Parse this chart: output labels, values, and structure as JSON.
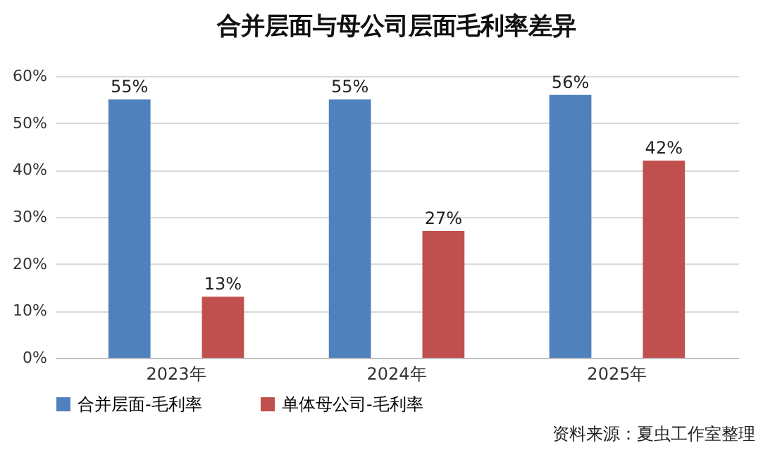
{
  "chart_data": {
    "type": "bar",
    "title": "合并层面与母公司层面毛利率差异",
    "categories": [
      "2023年",
      "2024年",
      "2025年"
    ],
    "series": [
      {
        "name": "合并层面-毛利率",
        "color": "#4f81bd",
        "values": [
          55,
          55,
          56
        ],
        "value_labels": [
          "55%",
          "55%",
          "56%"
        ]
      },
      {
        "name": "单体母公司-毛利率",
        "color": "#c0504d",
        "values": [
          13,
          27,
          42
        ],
        "value_labels": [
          "13%",
          "27%",
          "42%"
        ]
      }
    ],
    "ylim": [
      0,
      60
    ],
    "yticks": [
      {
        "value": 0,
        "label": "0%"
      },
      {
        "value": 10,
        "label": "10%"
      },
      {
        "value": 20,
        "label": "20%"
      },
      {
        "value": 30,
        "label": "30%"
      },
      {
        "value": 40,
        "label": "40%"
      },
      {
        "value": 50,
        "label": "50%"
      },
      {
        "value": 60,
        "label": "60%"
      }
    ],
    "grid": "y",
    "legend": "bottom",
    "annotations": [
      "资料来源：夏虫工作室整理"
    ]
  }
}
